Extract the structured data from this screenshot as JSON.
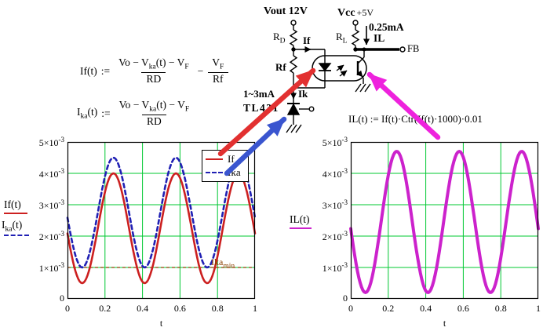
{
  "circuit": {
    "vout_label": "Vout 12V",
    "vcc_label": "Vcc",
    "vcc_value": "+5V",
    "rd_base": "R",
    "rd_sub": "D",
    "rl_base": "R",
    "rl_sub": "L",
    "rf_label": "Rf",
    "if_current_label": "If",
    "bias_current_label": "0.25mA",
    "il_current_label": "IL",
    "fb_label": "FB",
    "ik_range_label": "1~3mA",
    "ik_label": "Ik",
    "tl431_label": "TL431"
  },
  "formulas": {
    "if_def": {
      "lhs": "If(t)",
      "assign": ":=",
      "num": [
        "Vo − V",
        "ka",
        "(t) − V",
        "F"
      ],
      "den": "RD",
      "operator": "−",
      "num2": [
        "V",
        "F"
      ],
      "den2": "Rf"
    },
    "ika_def": {
      "lhs_base": "I",
      "lhs_sub": "ka",
      "lhs_rest": "(t)",
      "assign": ":=",
      "num": [
        "Vo − V",
        "ka",
        "(t) − V",
        "F"
      ],
      "den": "RD"
    },
    "il_def": "IL(t) := If(t)·Ctr(If(t)·1000)·0.01"
  },
  "legend": {
    "if_label": "If",
    "ika_label": "Ika"
  },
  "trace_labels": {
    "left_1": "If(t)",
    "left_2_base": "I",
    "left_2_sub": "ka",
    "left_2_rest": "(t)",
    "right_1": "IL(t)"
  },
  "chart_data": [
    {
      "type": "line",
      "title": "",
      "xlabel": "t",
      "ylabel": "If(t), Ika(t)",
      "xlim": [
        0,
        1
      ],
      "ylim": [
        0,
        0.005
      ],
      "x_ticks": [
        {
          "v": 0,
          "label": "0"
        },
        {
          "v": 0.2,
          "label": "0.2"
        },
        {
          "v": 0.4,
          "label": "0.4"
        },
        {
          "v": 0.6,
          "label": "0.6"
        },
        {
          "v": 0.8,
          "label": "0.8"
        },
        {
          "v": 1,
          "label": "1"
        }
      ],
      "y_ticks": [
        {
          "v": 0,
          "m": "0",
          "e": ""
        },
        {
          "v": 0.001,
          "m": "1×10",
          "e": "-3"
        },
        {
          "v": 0.002,
          "m": "2×10",
          "e": "-3"
        },
        {
          "v": 0.003,
          "m": "3×10",
          "e": "-3"
        },
        {
          "v": 0.004,
          "m": "4×10",
          "e": "-3"
        },
        {
          "v": 0.005,
          "m": "5×10",
          "e": "-3"
        }
      ],
      "grid": true,
      "grid_color": "#00c832",
      "series": [
        {
          "name": "If",
          "model": "sinusoid",
          "offset": 0.00225,
          "amplitude": 0.00175,
          "cycles": 3,
          "peak_t": 0.245,
          "y_min": 0.0005,
          "y_max": 0.004,
          "color": "#cc2020",
          "dash": "",
          "width": 2.6
        },
        {
          "name": "Ika",
          "model": "sinusoid",
          "offset": 0.00275,
          "amplitude": 0.00175,
          "cycles": 3,
          "peak_t": 0.245,
          "y_min": 0.001,
          "y_max": 0.0045,
          "color": "#2020b4",
          "dash": "5 4",
          "width": 2.6
        }
      ],
      "marker": {
        "y": 0.001,
        "label_base": "Ika",
        "label_sub": "min",
        "color": "#8b4000"
      }
    },
    {
      "type": "line",
      "title": "",
      "xlabel": "t",
      "ylabel": "IL(t)",
      "xlim": [
        0,
        1
      ],
      "ylim": [
        0,
        0.005
      ],
      "x_ticks": [
        {
          "v": 0,
          "label": "0"
        },
        {
          "v": 0.2,
          "label": "0.2"
        },
        {
          "v": 0.4,
          "label": "0.4"
        },
        {
          "v": 0.6,
          "label": "0.6"
        },
        {
          "v": 0.8,
          "label": "0.8"
        },
        {
          "v": 1,
          "label": "1"
        }
      ],
      "y_ticks": [
        {
          "v": 0,
          "m": "0",
          "e": ""
        },
        {
          "v": 0.001,
          "m": "1×10",
          "e": "-3"
        },
        {
          "v": 0.002,
          "m": "2×10",
          "e": "-3"
        },
        {
          "v": 0.003,
          "m": "3×10",
          "e": "-3"
        },
        {
          "v": 0.004,
          "m": "4×10",
          "e": "-3"
        },
        {
          "v": 0.005,
          "m": "5×10",
          "e": "-3"
        }
      ],
      "grid": true,
      "grid_color": "#00c832",
      "series": [
        {
          "name": "IL",
          "model": "sinusoid",
          "offset": 0.00245,
          "amplitude": 0.00225,
          "cycles": 3,
          "peak_t": 0.245,
          "y_min": 0.0002,
          "y_max": 0.0047,
          "color": "#cc22cc",
          "dash": "",
          "width": 4
        }
      ],
      "marker": null
    }
  ]
}
